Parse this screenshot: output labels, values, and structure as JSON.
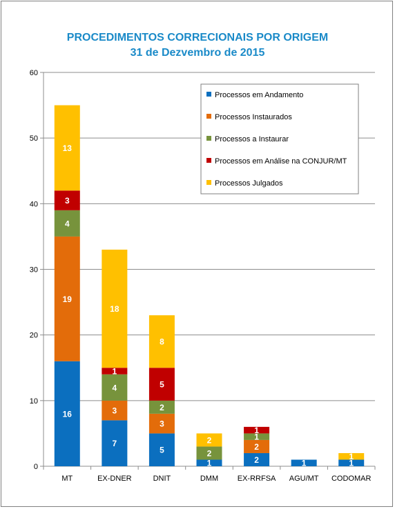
{
  "chart_data": {
    "type": "bar",
    "stacked": true,
    "title": "PROCEDIMENTOS CORRECIONAIS POR ORIGEM",
    "subtitle": "31 de Dezvembro de 2015",
    "categories": [
      "MT",
      "EX-DNER",
      "DNIT",
      "DMM",
      "EX-RRFSA",
      "AGU/MT",
      "CODOMAR"
    ],
    "series": [
      {
        "name": "Processos em Andamento",
        "color": "#0b6fbf",
        "values": [
          16,
          7,
          5,
          1,
          2,
          1,
          1
        ]
      },
      {
        "name": "Processos Instaurados",
        "color": "#e36c0a",
        "values": [
          19,
          3,
          3,
          0,
          2,
          0,
          0
        ]
      },
      {
        "name": "Processos a Instaurar",
        "color": "#77933c",
        "values": [
          4,
          4,
          2,
          2,
          1,
          0,
          0
        ]
      },
      {
        "name": "Processos em Análise na CONJUR/MT",
        "color": "#c00000",
        "values": [
          3,
          1,
          5,
          0,
          1,
          0,
          0
        ]
      },
      {
        "name": "Processos Julgados",
        "color": "#ffc000",
        "values": [
          13,
          18,
          8,
          2,
          0,
          0,
          1
        ]
      }
    ],
    "ylim": [
      0,
      60
    ],
    "yticks": [
      0,
      10,
      20,
      30,
      40,
      50,
      60
    ],
    "grid": true,
    "legend_position": "top-right",
    "xlabel": "",
    "ylabel": ""
  }
}
